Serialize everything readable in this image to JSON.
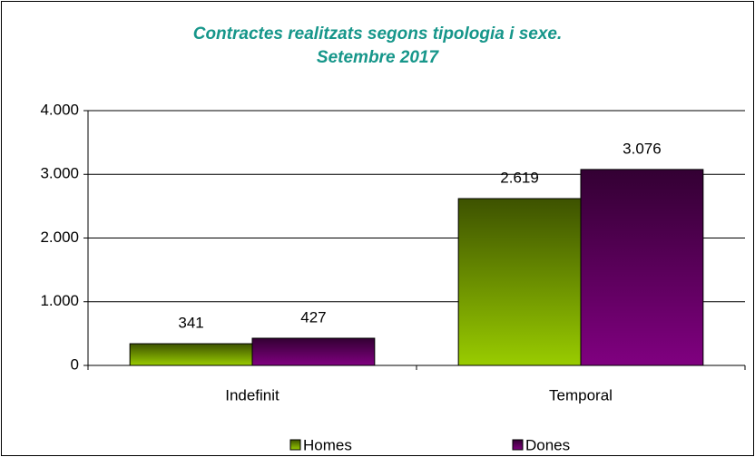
{
  "chart_data": {
    "type": "bar",
    "title": "Contractes realitzats segons tipologia i sexe.",
    "subtitle": "Setembre 2017",
    "categories": [
      "Indefinit",
      "Temporal"
    ],
    "series": [
      {
        "name": "Homes",
        "color": "#99cc00",
        "values": [
          341,
          2619
        ],
        "value_labels": [
          "341",
          "2.619"
        ]
      },
      {
        "name": "Dones",
        "color": "#800080",
        "values": [
          427,
          3076
        ],
        "value_labels": [
          "427",
          "3.076"
        ]
      }
    ],
    "ylim": [
      0,
      4000
    ],
    "yticks": [
      0,
      {
        "value": 1000,
        "label": "1.000"
      },
      {
        "value": 2000,
        "label": "2.000"
      },
      {
        "value": 3000,
        "label": "3.000"
      },
      {
        "value": 4000,
        "label": "4.000"
      }
    ],
    "grid": true,
    "legend": "bottom"
  }
}
